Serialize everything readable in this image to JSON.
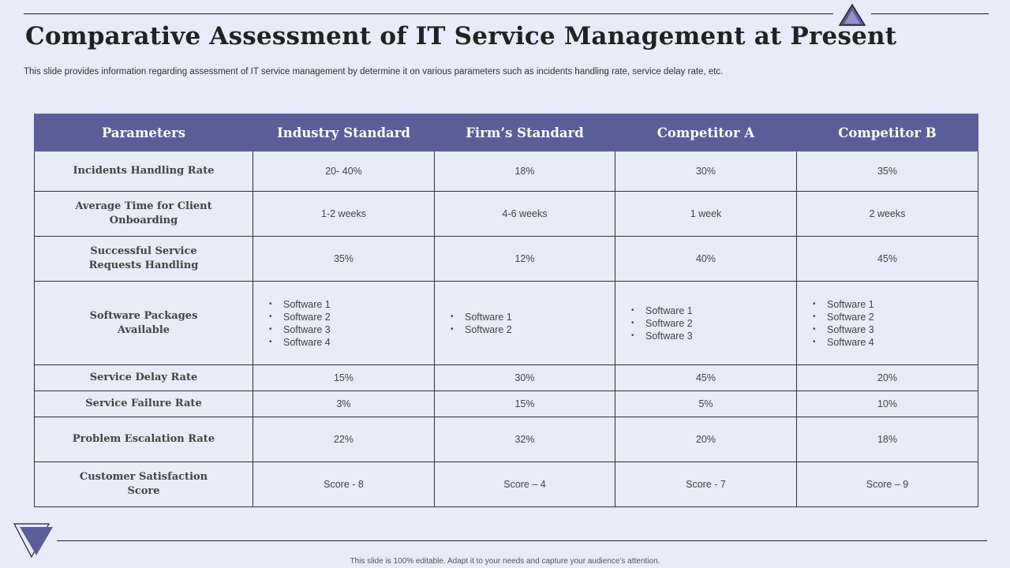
{
  "title": "Comparative Assessment of IT Service Management at Present",
  "subtitle": "This slide provides information regarding assessment of IT  service management by determine it on various parameters such as incidents handling rate, service delay rate, etc.",
  "footer": "This slide is 100% editable.  Adapt it to your needs and capture your audience’s attention.",
  "table": {
    "headers": [
      "Parameters",
      "Industry Standard",
      "Firm’s Standard",
      "Competitor A",
      "Competitor B"
    ],
    "rows": [
      {
        "label": "Incidents Handling Rate",
        "cells": [
          "20- 40%",
          "18%",
          "30%",
          "35%"
        ]
      },
      {
        "label": "Average Time for Client Onboarding",
        "cells": [
          "1-2 weeks",
          "4-6 weeks",
          "1 week",
          "2 weeks"
        ]
      },
      {
        "label": "Successful Service Requests Handling",
        "cells": [
          "35%",
          "12%",
          "40%",
          "45%"
        ]
      },
      {
        "label": "Software Packages Available",
        "lists": [
          [
            "Software  1",
            "Software  2",
            "Software  3",
            "Software  4"
          ],
          [
            "Software  1",
            "Software  2"
          ],
          [
            "Software  1",
            "Software  2",
            "Software  3"
          ],
          [
            "Software  1",
            "Software  2",
            "Software  3",
            "Software  4"
          ]
        ]
      },
      {
        "label": "Service Delay Rate",
        "cells": [
          "15%",
          "30%",
          "45%",
          "20%"
        ]
      },
      {
        "label": "Service Failure Rate",
        "cells": [
          "3%",
          "15%",
          "5%",
          "10%"
        ]
      },
      {
        "label": "Problem Escalation Rate",
        "cells": [
          "22%",
          "32%",
          "20%",
          "18%"
        ]
      },
      {
        "label": "Customer Satisfaction Score",
        "cells": [
          "Score - 8",
          "Score – 4",
          "Score - 7",
          "Score – 9"
        ]
      }
    ]
  },
  "colors": {
    "header_bg": "#5a5f99",
    "background": "#e8ebf8",
    "accent": "#5a5f99"
  }
}
